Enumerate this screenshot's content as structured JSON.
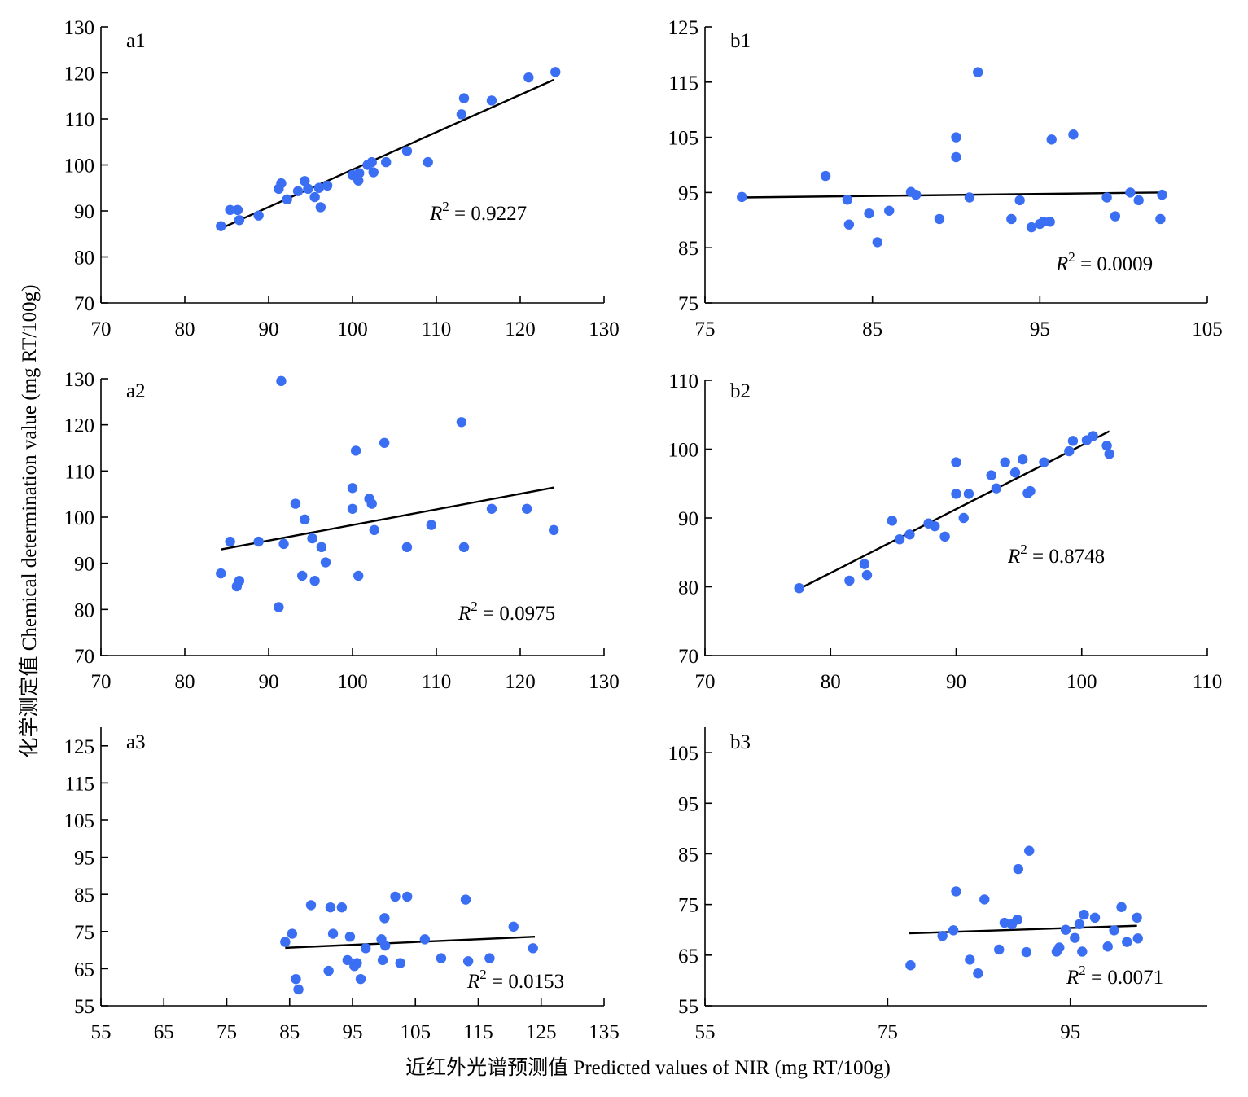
{
  "axis_titles": {
    "x": "近红外光谱预测值 Predicted values of NIR (mg RT/100g)",
    "y": "化学测定值 Chemical determination value (mg RT/100g)"
  },
  "colors": {
    "point": "#3b6ff3",
    "line": "#000000"
  },
  "chart_data": [
    {
      "panel": "a1",
      "type": "scatter",
      "xlim": [
        70,
        130
      ],
      "xticks": [
        70,
        80,
        90,
        100,
        110,
        120,
        130
      ],
      "ylim": [
        70,
        130
      ],
      "yticks": [
        70,
        80,
        90,
        100,
        110,
        120,
        130
      ],
      "r2": "0.9227",
      "trendline": [
        [
          84.3,
          86.2
        ],
        [
          124,
          118.5
        ]
      ],
      "points": [
        [
          84.3,
          86.7
        ],
        [
          85.4,
          90.2
        ],
        [
          86.3,
          90.2
        ],
        [
          86.5,
          88
        ],
        [
          88.8,
          89
        ],
        [
          91.2,
          94.8
        ],
        [
          91.5,
          96
        ],
        [
          92.2,
          92.5
        ],
        [
          93.5,
          94.3
        ],
        [
          94.3,
          96.5
        ],
        [
          94.7,
          94.8
        ],
        [
          95.5,
          93
        ],
        [
          96,
          95
        ],
        [
          96.2,
          90.8
        ],
        [
          97,
          95.5
        ],
        [
          100,
          97.8
        ],
        [
          100.7,
          96.6
        ],
        [
          100.8,
          98.2
        ],
        [
          101.8,
          100
        ],
        [
          102.3,
          100.6
        ],
        [
          102.5,
          98.4
        ],
        [
          104,
          100.6
        ],
        [
          106.5,
          103
        ],
        [
          109,
          100.6
        ],
        [
          113,
          111
        ],
        [
          113.3,
          114.5
        ],
        [
          116.6,
          114
        ],
        [
          121,
          119
        ],
        [
          124.2,
          120.2
        ]
      ]
    },
    {
      "panel": "b1",
      "type": "scatter",
      "xlim": [
        75,
        105
      ],
      "xticks": [
        75,
        85,
        95,
        105
      ],
      "ylim": [
        75,
        125
      ],
      "yticks": [
        75,
        85,
        95,
        105,
        115,
        125
      ],
      "r2": "0.0009",
      "trendline": [
        [
          77.2,
          94.1
        ],
        [
          102.2,
          95
        ]
      ],
      "points": [
        [
          77.2,
          94.2
        ],
        [
          82.2,
          98
        ],
        [
          83.5,
          93.7
        ],
        [
          83.6,
          89.2
        ],
        [
          84.8,
          91.2
        ],
        [
          85.3,
          86
        ],
        [
          86,
          91.7
        ],
        [
          87.3,
          95.1
        ],
        [
          87.6,
          94.6
        ],
        [
          89,
          90.2
        ],
        [
          90,
          105
        ],
        [
          90,
          101.4
        ],
        [
          90.8,
          94.1
        ],
        [
          91.3,
          116.8
        ],
        [
          93.3,
          90.2
        ],
        [
          93.8,
          93.6
        ],
        [
          94.5,
          88.7
        ],
        [
          95,
          89.3
        ],
        [
          95.2,
          89.7
        ],
        [
          95.6,
          89.7
        ],
        [
          95.7,
          104.6
        ],
        [
          97,
          105.5
        ],
        [
          99,
          94.1
        ],
        [
          99.5,
          90.7
        ],
        [
          100.4,
          95
        ],
        [
          100.9,
          93.6
        ],
        [
          102.2,
          90.2
        ],
        [
          102.3,
          94.6
        ]
      ]
    },
    {
      "panel": "a2",
      "type": "scatter",
      "xlim": [
        70,
        130
      ],
      "xticks": [
        70,
        80,
        90,
        100,
        110,
        120,
        130
      ],
      "ylim": [
        70,
        130
      ],
      "yticks": [
        70,
        80,
        90,
        100,
        110,
        120,
        130
      ],
      "r2": "0.0975",
      "trendline": [
        [
          84.3,
          93
        ],
        [
          124,
          106.4
        ]
      ],
      "points": [
        [
          84.3,
          87.8
        ],
        [
          85.4,
          94.7
        ],
        [
          86.2,
          85
        ],
        [
          86.5,
          86.2
        ],
        [
          88.8,
          94.7
        ],
        [
          91.2,
          80.5
        ],
        [
          91.5,
          129.5
        ],
        [
          91.8,
          94.2
        ],
        [
          93.2,
          102.9
        ],
        [
          94,
          87.3
        ],
        [
          94.3,
          99.5
        ],
        [
          95.2,
          95.4
        ],
        [
          95.5,
          86.2
        ],
        [
          96.3,
          93.5
        ],
        [
          96.8,
          90.2
        ],
        [
          100,
          101.8
        ],
        [
          100,
          106.3
        ],
        [
          100.4,
          114.4
        ],
        [
          100.7,
          87.3
        ],
        [
          102,
          104
        ],
        [
          102.3,
          102.9
        ],
        [
          102.6,
          97.2
        ],
        [
          103.8,
          116.1
        ],
        [
          106.5,
          93.5
        ],
        [
          109.4,
          98.3
        ],
        [
          113,
          120.6
        ],
        [
          113.3,
          93.5
        ],
        [
          116.6,
          101.8
        ],
        [
          120.8,
          101.8
        ],
        [
          124,
          97.2
        ]
      ]
    },
    {
      "panel": "b2",
      "type": "scatter",
      "xlim": [
        70,
        110
      ],
      "xticks": [
        70,
        80,
        90,
        100,
        110
      ],
      "ylim": [
        70,
        110
      ],
      "yticks": [
        70,
        80,
        90,
        100,
        110
      ],
      "r2": "0.8748",
      "trendline": [
        [
          77.4,
          79.6
        ],
        [
          102.2,
          102.6
        ]
      ],
      "points": [
        [
          77.5,
          79.8
        ],
        [
          81.5,
          80.9
        ],
        [
          82.7,
          83.3
        ],
        [
          82.9,
          81.7
        ],
        [
          84.9,
          89.6
        ],
        [
          85.5,
          86.9
        ],
        [
          86.3,
          87.6
        ],
        [
          87.8,
          89.2
        ],
        [
          88.3,
          88.8
        ],
        [
          89.1,
          87.3
        ],
        [
          90,
          93.5
        ],
        [
          90,
          98.1
        ],
        [
          90.6,
          90
        ],
        [
          91,
          93.5
        ],
        [
          92.8,
          96.2
        ],
        [
          93.2,
          94.3
        ],
        [
          93.9,
          98.1
        ],
        [
          94.7,
          96.6
        ],
        [
          95.3,
          98.5
        ],
        [
          95.7,
          93.6
        ],
        [
          95.9,
          93.9
        ],
        [
          97,
          98.1
        ],
        [
          99,
          99.7
        ],
        [
          99.3,
          101.2
        ],
        [
          100.4,
          101.3
        ],
        [
          100.9,
          101.9
        ],
        [
          102,
          100.5
        ],
        [
          102.2,
          99.3
        ]
      ]
    },
    {
      "panel": "a3",
      "type": "scatter",
      "xlim": [
        55,
        135
      ],
      "xticks": [
        55,
        65,
        75,
        85,
        95,
        105,
        115,
        125,
        135
      ],
      "ylim": [
        55,
        130
      ],
      "yticks": [
        55,
        65,
        75,
        85,
        95,
        105,
        115,
        125
      ],
      "r2": "0.0153",
      "trendline": [
        [
          84.3,
          70.6
        ],
        [
          124,
          73.6
        ]
      ],
      "points": [
        [
          84.3,
          72.2
        ],
        [
          85.4,
          74.4
        ],
        [
          86,
          62.2
        ],
        [
          86.4,
          59.4
        ],
        [
          88.4,
          82.1
        ],
        [
          91.2,
          64.4
        ],
        [
          91.5,
          81.5
        ],
        [
          91.9,
          74.4
        ],
        [
          93.3,
          81.5
        ],
        [
          94.2,
          67.3
        ],
        [
          94.6,
          73.6
        ],
        [
          95.3,
          65.7
        ],
        [
          95.7,
          66.5
        ],
        [
          96.3,
          62.2
        ],
        [
          97.1,
          70.5
        ],
        [
          99.6,
          72.9
        ],
        [
          99.8,
          67.3
        ],
        [
          100.1,
          78.6
        ],
        [
          100.2,
          71.2
        ],
        [
          101.8,
          84.4
        ],
        [
          102.6,
          66.5
        ],
        [
          103.7,
          84.4
        ],
        [
          106.5,
          72.9
        ],
        [
          109.1,
          67.8
        ],
        [
          113,
          83.6
        ],
        [
          113.4,
          67
        ],
        [
          116.8,
          67.8
        ],
        [
          120.6,
          76.3
        ],
        [
          123.7,
          70.5
        ]
      ]
    },
    {
      "panel": "b3",
      "type": "scatter",
      "xlim": [
        55,
        110
      ],
      "xticks": [
        55,
        75,
        95
      ],
      "ylim": [
        55,
        110
      ],
      "yticks": [
        55,
        65,
        75,
        85,
        95,
        105
      ],
      "r2": "0.0071",
      "trendline": [
        [
          77.3,
          69.3
        ],
        [
          102.3,
          70.8
        ]
      ],
      "points": [
        [
          77.5,
          63
        ],
        [
          81,
          68.8
        ],
        [
          82.2,
          69.9
        ],
        [
          82.5,
          77.6
        ],
        [
          84,
          64.1
        ],
        [
          84.9,
          61.4
        ],
        [
          85.6,
          76
        ],
        [
          87.2,
          66.1
        ],
        [
          87.8,
          71.4
        ],
        [
          88.6,
          71.1
        ],
        [
          89.2,
          72
        ],
        [
          89.3,
          82
        ],
        [
          90.2,
          65.6
        ],
        [
          90.5,
          85.6
        ],
        [
          93.5,
          65.7
        ],
        [
          93.8,
          66.5
        ],
        [
          94.5,
          70
        ],
        [
          95.5,
          68.4
        ],
        [
          96,
          71.1
        ],
        [
          96.3,
          65.7
        ],
        [
          96.5,
          73
        ],
        [
          97.7,
          72.4
        ],
        [
          99.1,
          66.7
        ],
        [
          99.8,
          69.9
        ],
        [
          100.6,
          74.5
        ],
        [
          101.2,
          67.6
        ],
        [
          102.3,
          72.4
        ],
        [
          102.4,
          68.3
        ]
      ]
    }
  ]
}
